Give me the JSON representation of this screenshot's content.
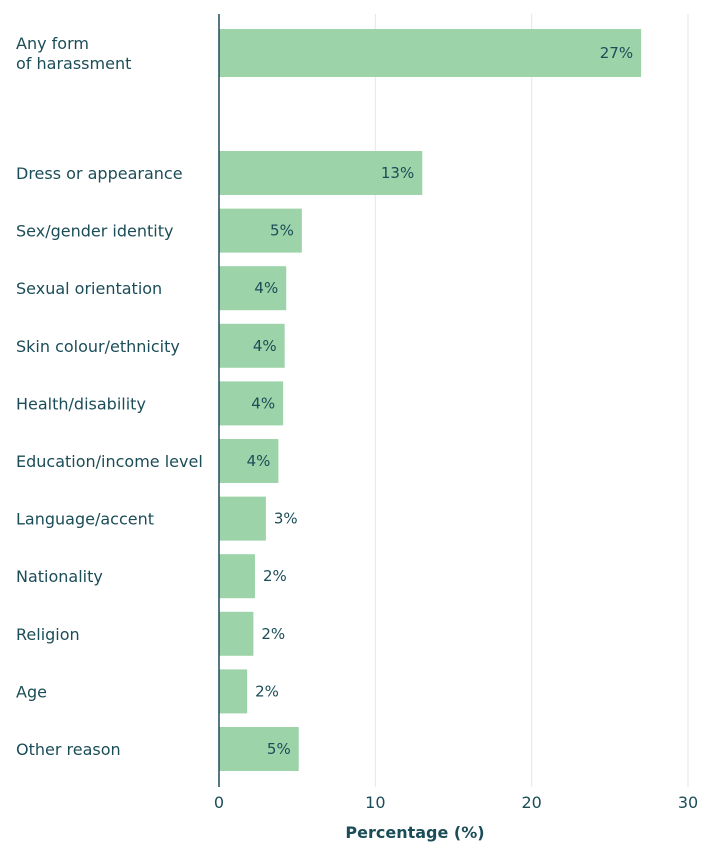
{
  "colors": {
    "bar": "#9dd3a8",
    "text": "#1b4d58",
    "axis": "#1b4d58",
    "grid": "#e6e6e6"
  },
  "chart_data": {
    "type": "bar",
    "orientation": "horizontal",
    "title": "",
    "xlabel": "Percentage (%)",
    "ylabel": "",
    "xlim": [
      0,
      30
    ],
    "xticks": [
      0,
      10,
      20,
      30
    ],
    "grid": true,
    "categories": [
      [
        "Any form",
        "of harassment"
      ],
      [
        "Dress or appearance"
      ],
      [
        "Sex/gender identity"
      ],
      [
        "Sexual orientation"
      ],
      [
        "Skin colour/ethnicity"
      ],
      [
        "Health/disability"
      ],
      [
        "Education/income level"
      ],
      [
        "Language/accent"
      ],
      [
        "Nationality"
      ],
      [
        "Religion"
      ],
      [
        "Age"
      ],
      [
        "Other reason"
      ]
    ],
    "values": [
      27,
      13,
      5.3,
      4.3,
      4.2,
      4.1,
      3.8,
      3.0,
      2.3,
      2.2,
      1.8,
      5.1
    ],
    "value_labels": [
      "27%",
      "13%",
      "5%",
      "4%",
      "4%",
      "4%",
      "4%",
      "3%",
      "2%",
      "2%",
      "2%",
      "5%"
    ]
  }
}
